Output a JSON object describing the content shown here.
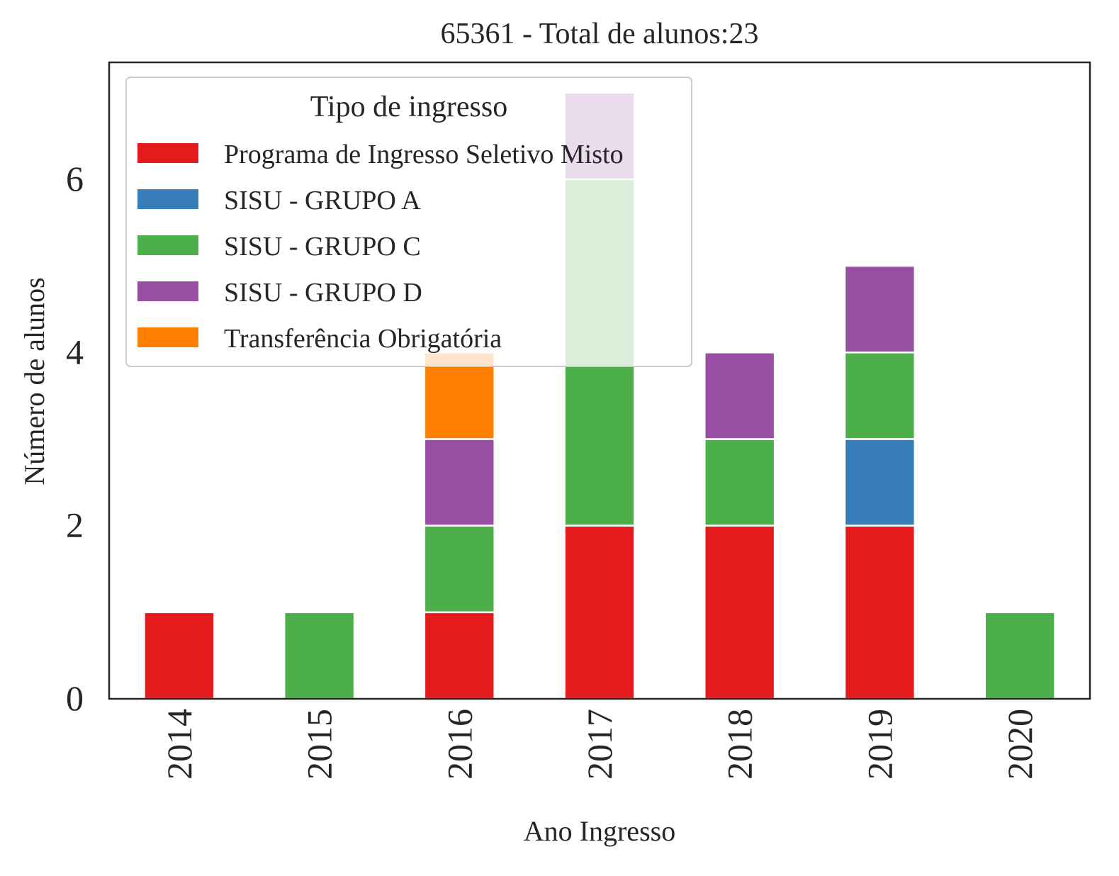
{
  "chart_data": {
    "type": "bar",
    "stacked": true,
    "title": "65361 - Total de alunos:23",
    "xlabel": "Ano Ingresso",
    "ylabel": "Número de alunos",
    "categories": [
      "2014",
      "2015",
      "2016",
      "2017",
      "2018",
      "2019",
      "2020"
    ],
    "ylim": [
      0,
      7.35
    ],
    "yticks": [
      0,
      2,
      4,
      6
    ],
    "legend": {
      "title": "Tipo de ingresso",
      "position": "top-left"
    },
    "series": [
      {
        "name": "Programa de Ingresso Seletivo Misto",
        "color": "#e41a1c",
        "values": [
          1,
          0,
          1,
          2,
          2,
          2,
          0
        ]
      },
      {
        "name": "SISU - GRUPO A",
        "color": "#377eb8",
        "values": [
          0,
          0,
          0,
          0,
          0,
          1,
          0
        ]
      },
      {
        "name": "SISU - GRUPO C",
        "color": "#4daf4a",
        "values": [
          0,
          1,
          1,
          4,
          1,
          1,
          1
        ]
      },
      {
        "name": "SISU - GRUPO D",
        "color": "#984ea3",
        "values": [
          0,
          0,
          1,
          1,
          1,
          1,
          0
        ]
      },
      {
        "name": "Transferência Obrigatória",
        "color": "#ff7f00",
        "values": [
          0,
          0,
          1,
          0,
          0,
          0,
          0
        ]
      }
    ]
  }
}
